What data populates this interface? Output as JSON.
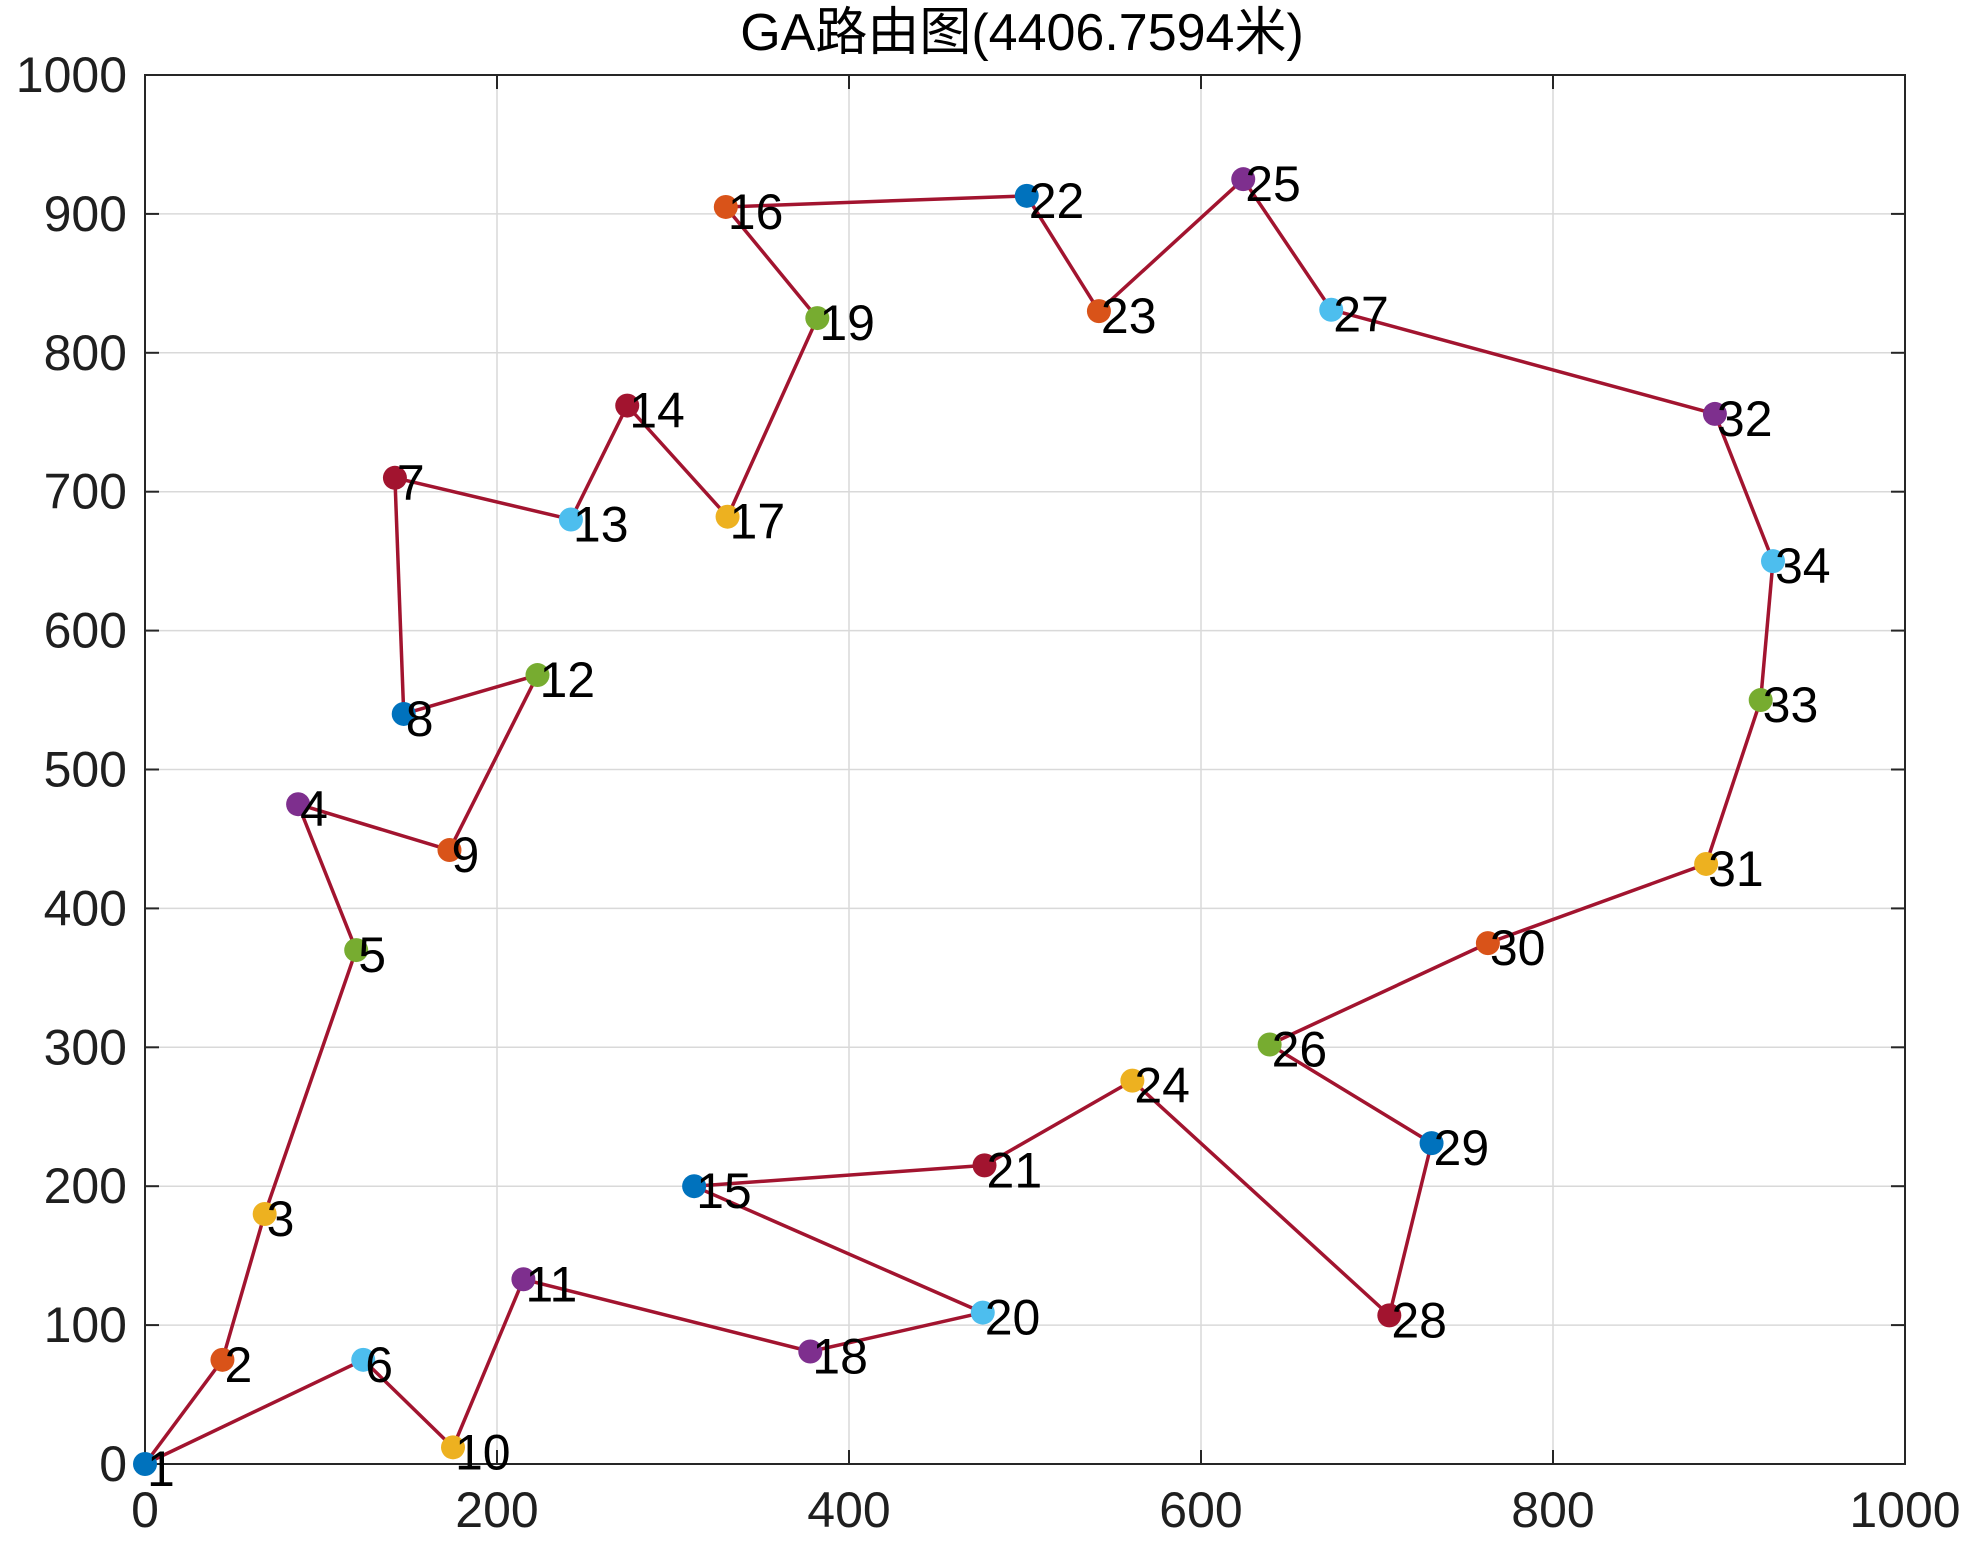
{
  "chart_data": {
    "type": "scatter",
    "title": "GA路由图(4406.7594米)",
    "xlabel": "",
    "ylabel": "",
    "xlim": [
      0,
      1000
    ],
    "ylim": [
      0,
      1000
    ],
    "xticks": [
      0,
      200,
      400,
      600,
      800,
      1000
    ],
    "yticks": [
      0,
      100,
      200,
      300,
      400,
      500,
      600,
      700,
      800,
      900,
      1000
    ],
    "grid": true,
    "route_color": "#A2142F",
    "marker_colors": [
      "#0072BD",
      "#D95319",
      "#EDB120",
      "#7E2F8E",
      "#77AC30",
      "#4DBEEE",
      "#A2142F"
    ],
    "points": [
      {
        "id": 1,
        "label": "1",
        "x": 0,
        "y": 0
      },
      {
        "id": 2,
        "label": "2",
        "x": 44,
        "y": 75
      },
      {
        "id": 3,
        "label": "3",
        "x": 68,
        "y": 180
      },
      {
        "id": 4,
        "label": "4",
        "x": 87,
        "y": 475
      },
      {
        "id": 5,
        "label": "5",
        "x": 120,
        "y": 370
      },
      {
        "id": 6,
        "label": "6",
        "x": 124,
        "y": 75
      },
      {
        "id": 7,
        "label": "7",
        "x": 142,
        "y": 710
      },
      {
        "id": 8,
        "label": "8",
        "x": 147,
        "y": 540
      },
      {
        "id": 9,
        "label": "9",
        "x": 173,
        "y": 442
      },
      {
        "id": 10,
        "label": "10",
        "x": 175,
        "y": 12
      },
      {
        "id": 11,
        "label": "11",
        "x": 215,
        "y": 133
      },
      {
        "id": 12,
        "label": "12",
        "x": 223,
        "y": 568
      },
      {
        "id": 13,
        "label": "13",
        "x": 242,
        "y": 680
      },
      {
        "id": 14,
        "label": "14",
        "x": 274,
        "y": 762
      },
      {
        "id": 15,
        "label": "15",
        "x": 312,
        "y": 200
      },
      {
        "id": 16,
        "label": "16",
        "x": 330,
        "y": 905
      },
      {
        "id": 17,
        "label": "17",
        "x": 331,
        "y": 682
      },
      {
        "id": 18,
        "label": "18",
        "x": 378,
        "y": 81
      },
      {
        "id": 19,
        "label": "19",
        "x": 382,
        "y": 825
      },
      {
        "id": 20,
        "label": "20",
        "x": 476,
        "y": 109
      },
      {
        "id": 21,
        "label": "21",
        "x": 477,
        "y": 215
      },
      {
        "id": 22,
        "label": "22",
        "x": 501,
        "y": 913
      },
      {
        "id": 23,
        "label": "23",
        "x": 542,
        "y": 830
      },
      {
        "id": 24,
        "label": "24",
        "x": 561,
        "y": 276
      },
      {
        "id": 25,
        "label": "25",
        "x": 624,
        "y": 925
      },
      {
        "id": 26,
        "label": "26",
        "x": 639,
        "y": 302
      },
      {
        "id": 27,
        "label": "27",
        "x": 674,
        "y": 831
      },
      {
        "id": 28,
        "label": "28",
        "x": 707,
        "y": 107
      },
      {
        "id": 29,
        "label": "29",
        "x": 731,
        "y": 231
      },
      {
        "id": 30,
        "label": "30",
        "x": 763,
        "y": 375
      },
      {
        "id": 31,
        "label": "31",
        "x": 887,
        "y": 432
      },
      {
        "id": 32,
        "label": "32",
        "x": 892,
        "y": 756
      },
      {
        "id": 33,
        "label": "33",
        "x": 918,
        "y": 550
      },
      {
        "id": 34,
        "label": "34",
        "x": 925,
        "y": 650
      }
    ],
    "route_order": [
      1,
      6,
      10,
      11,
      18,
      20,
      15,
      21,
      24,
      28,
      29,
      26,
      30,
      31,
      33,
      34,
      32,
      27,
      25,
      23,
      22,
      16,
      19,
      17,
      14,
      13,
      7,
      8,
      12,
      9,
      4,
      5,
      3,
      2,
      1
    ]
  }
}
